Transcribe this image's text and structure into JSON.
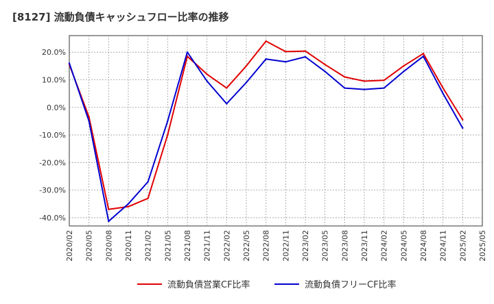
{
  "chart_data": {
    "type": "line",
    "title": "[8127]  流動負債キャッシュフロー比率の推移",
    "xlabel": "",
    "ylabel": "",
    "ylim": [
      -43,
      26
    ],
    "yticks": [
      -40,
      -30,
      -20,
      -10,
      0,
      10,
      20
    ],
    "ytick_labels": [
      "-40.0%",
      "-30.0%",
      "-20.0%",
      "-10.0%",
      "0.0%",
      "10.0%",
      "20.0%"
    ],
    "categories": [
      "2020/02",
      "2020/05",
      "2020/08",
      "2020/11",
      "2021/02",
      "2021/05",
      "2021/08",
      "2021/11",
      "2022/02",
      "2022/05",
      "2022/08",
      "2022/11",
      "2023/02",
      "2023/05",
      "2023/08",
      "2023/11",
      "2024/02",
      "2024/05",
      "2024/08",
      "2024/11",
      "2025/02",
      "2025/05"
    ],
    "grid": true,
    "legend_position": "bottom",
    "series": [
      {
        "name": "流動負債営業CF比率",
        "color": "#e00000",
        "values": [
          15.5,
          -3.5,
          -37.0,
          -36.0,
          -33.0,
          -10.0,
          18.5,
          12.0,
          7.0,
          15.0,
          24.0,
          20.2,
          20.4,
          15.5,
          11.0,
          9.5,
          9.8,
          15.0,
          19.5,
          7.0,
          -4.5,
          null
        ]
      },
      {
        "name": "流動負債フリーCF比率",
        "color": "#0000d0",
        "values": [
          16.0,
          -5.0,
          -41.3,
          -35.0,
          -27.0,
          -5.0,
          20.0,
          9.5,
          1.3,
          9.0,
          17.5,
          16.5,
          18.3,
          13.0,
          7.0,
          6.5,
          7.0,
          13.0,
          18.5,
          5.0,
          -7.5,
          null
        ]
      }
    ]
  }
}
